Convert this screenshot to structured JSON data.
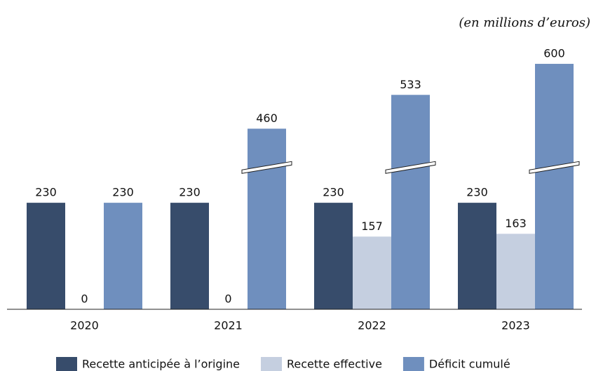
{
  "chart_data": {
    "type": "bar",
    "subtitle": "(en millions d’euros)",
    "categories": [
      "2020",
      "2021",
      "2022",
      "2023"
    ],
    "series": [
      {
        "name": "Recette anticipée à l’origine",
        "color": "#374c6b",
        "values": [
          230,
          230,
          230,
          230
        ]
      },
      {
        "name": "Recette effective",
        "color": "#c5cfe0",
        "values": [
          0,
          0,
          157,
          163
        ]
      },
      {
        "name": "Déficit cumulé",
        "color": "#6f8fbe",
        "values": [
          230,
          460,
          533,
          600
        ]
      }
    ],
    "ylim": [
      0,
      700
    ],
    "y_break": [
      310,
      380
    ],
    "grid": false,
    "legend": "bottom"
  }
}
